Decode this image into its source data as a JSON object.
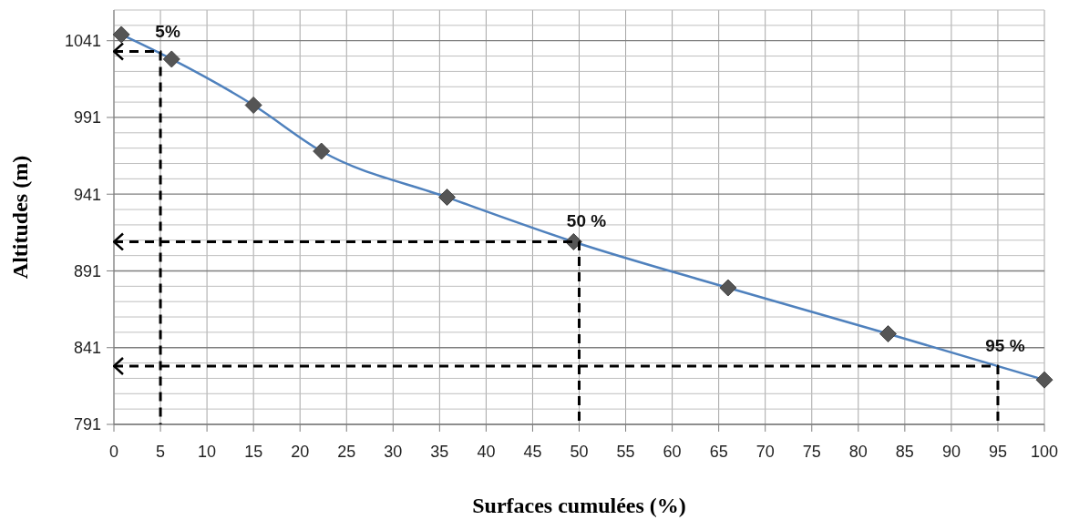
{
  "chart_data": {
    "type": "line",
    "xlabel": "Surfaces cumulées (%)",
    "ylabel": "Altitudes (m)",
    "x": [
      0.8,
      6.2,
      15,
      22.3,
      35.8,
      49.4,
      66,
      83.2,
      100
    ],
    "series": [
      {
        "color": "#4f81bd",
        "values": [
          1045,
          1029,
          999,
          969,
          939,
          910,
          880,
          850,
          820
        ]
      },
      {
        "type": "line",
        "x": [
          0,
          5,
          5
        ],
        "values": [
          1034,
          1034,
          791
        ],
        "color": "#000000",
        "line_style": "dashed",
        "marker": "none"
      },
      {
        "type": "line",
        "x": [
          0,
          50,
          50
        ],
        "values": [
          910,
          910,
          791
        ],
        "color": "#000000",
        "line_style": "dashed",
        "marker": "none"
      },
      {
        "type": "line",
        "x": [
          0,
          95,
          95
        ],
        "values": [
          829,
          829,
          791
        ],
        "color": "#000000",
        "line_style": "dashed",
        "marker": "none"
      }
    ],
    "marker": "diamond",
    "grid": true,
    "xlim": [
      0,
      100
    ],
    "xticks": [
      0,
      5,
      10,
      15,
      20,
      25,
      30,
      35,
      40,
      45,
      50,
      55,
      60,
      65,
      70,
      75,
      80,
      85,
      90,
      95,
      100
    ],
    "ylim": [
      791,
      1061
    ],
    "yticks": [
      791,
      {
        "value": 801,
        "label": null
      },
      {
        "value": 811,
        "label": null
      },
      {
        "value": 821,
        "label": null
      },
      {
        "value": 831,
        "label": null
      },
      841,
      {
        "value": 851,
        "label": null
      },
      {
        "value": 861,
        "label": null
      },
      {
        "value": 871,
        "label": null
      },
      {
        "value": 881,
        "label": null
      },
      891,
      {
        "value": 901,
        "label": null
      },
      {
        "value": 911,
        "label": null
      },
      {
        "value": 921,
        "label": null
      },
      {
        "value": 931,
        "label": null
      },
      941,
      {
        "value": 951,
        "label": null
      },
      {
        "value": 961,
        "label": null
      },
      {
        "value": 971,
        "label": null
      },
      {
        "value": 981,
        "label": null
      },
      991,
      {
        "value": 1001,
        "label": null
      },
      {
        "value": 1011,
        "label": null
      },
      {
        "value": 1021,
        "label": null
      },
      {
        "value": 1031,
        "label": null
      },
      1041,
      {
        "value": 1051,
        "label": null
      },
      {
        "value": 1061,
        "label": null
      }
    ],
    "annotations": [
      {
        "text": "5%",
        "x": 5,
        "y": 1034
      },
      {
        "text": "50 %",
        "x": 50,
        "y": 910
      },
      {
        "text": "95 %",
        "x": 95,
        "y": 829
      }
    ]
  }
}
